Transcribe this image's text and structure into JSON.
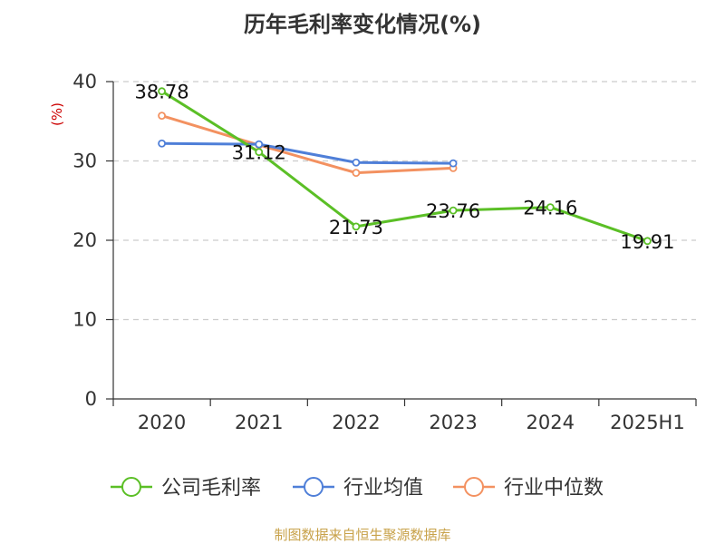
{
  "title": "历年毛利率变化情况(%)",
  "y_unit": "(%)",
  "source": "制图数据来自恒生聚源数据库",
  "colors": {
    "text": "#333333",
    "grid": "#cccccc",
    "axis": "#333333",
    "unit": "#cc0000",
    "source": "#c8a24a"
  },
  "chart_data": {
    "type": "line",
    "categories": [
      "2020",
      "2021",
      "2022",
      "2023",
      "2024",
      "2025H1"
    ],
    "ylim": [
      0,
      40
    ],
    "yticks": [
      0,
      10,
      20,
      30,
      40
    ],
    "grid": true,
    "legend_position": "bottom",
    "series": [
      {
        "name": "公司毛利率",
        "color": "#5bbf26",
        "values": [
          38.78,
          31.12,
          21.73,
          23.76,
          24.16,
          19.91
        ],
        "labels": [
          "38.78",
          "31.12",
          "21.73",
          "23.76",
          "24.16",
          "19.91"
        ]
      },
      {
        "name": "行业均值",
        "color": "#4f7fd8",
        "values": [
          32.2,
          32.1,
          29.8,
          29.7,
          null,
          null
        ]
      },
      {
        "name": "行业中位数",
        "color": "#f39160",
        "values": [
          35.7,
          32.0,
          28.5,
          29.1,
          null,
          null
        ]
      }
    ]
  }
}
